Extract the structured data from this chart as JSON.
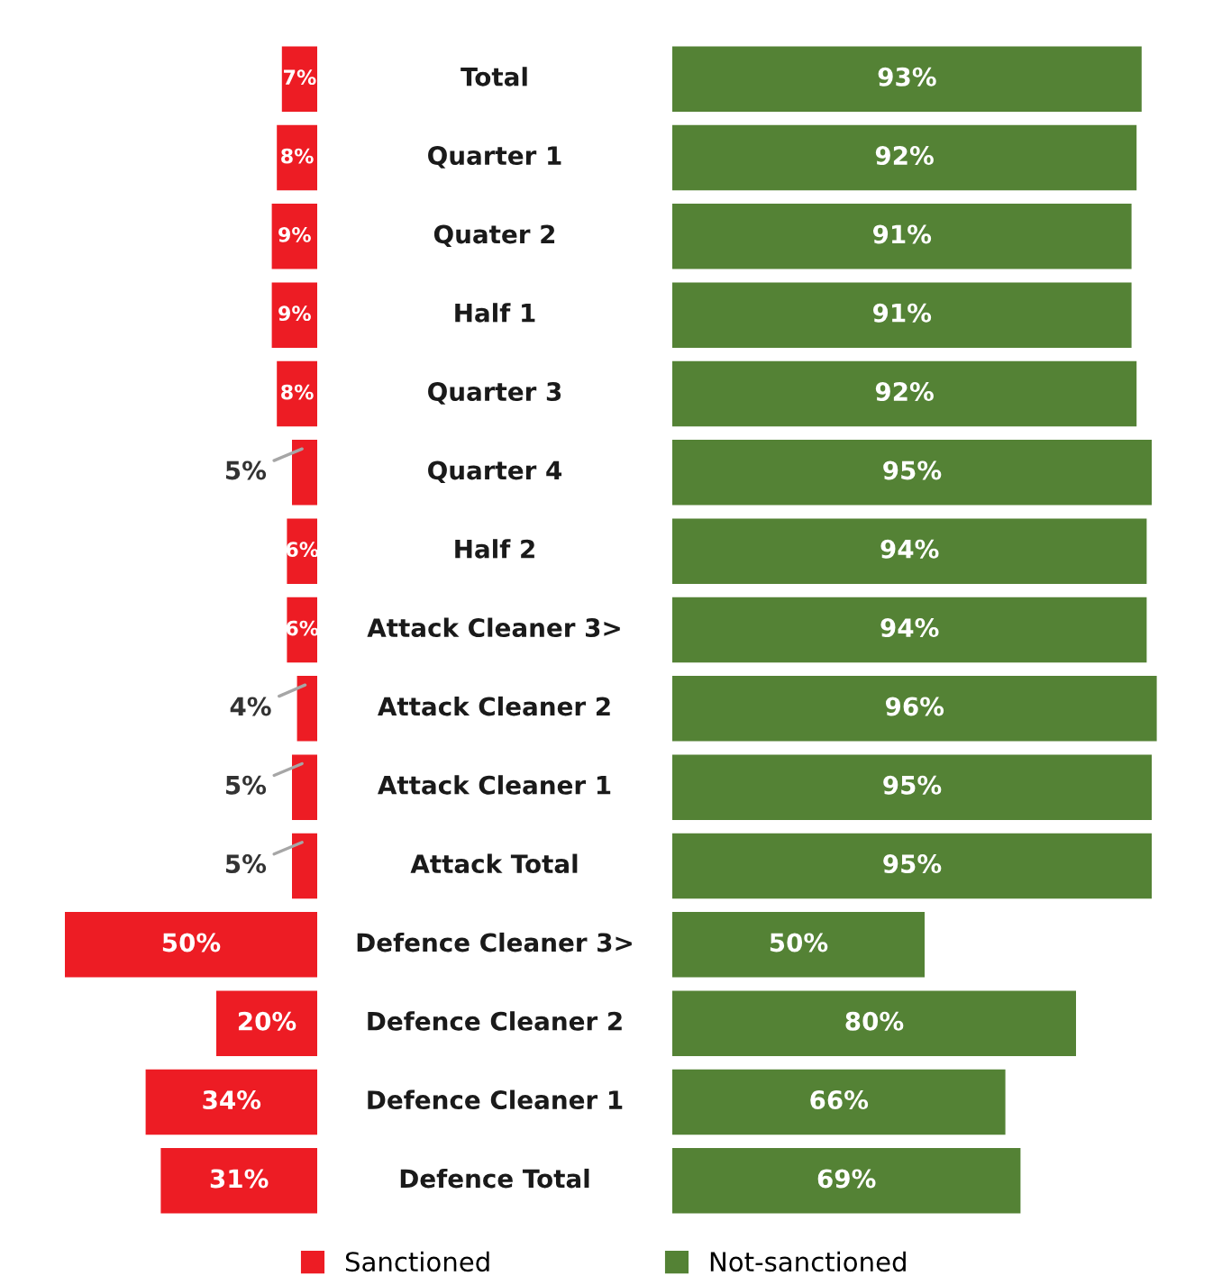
{
  "chart_data": [
    {
      "type": "bar",
      "orientation": "horizontal",
      "legend": "bottom",
      "categories": [
        "Total",
        "Quarter 1",
        "Quater 2",
        "Half 1",
        "Quarter 3",
        "Quarter 4",
        "Half 2",
        "Attack Cleaner 3>",
        "Attack Cleaner 2",
        "Attack Cleaner 1",
        "Attack Total",
        "Defence Cleaner 3>",
        "Defence Cleaner 2",
        "Defence Cleaner 1",
        "Defence Total"
      ],
      "series": [
        {
          "name": "Sanctioned",
          "color": "#ed1c24",
          "values": [
            7,
            8,
            9,
            9,
            8,
            5,
            6,
            6,
            4,
            5,
            5,
            50,
            20,
            34,
            31
          ],
          "value_labels": [
            "7%",
            "8%",
            "9%",
            "9%",
            "8%",
            "5%",
            "6%",
            "6%",
            "4%",
            "5%",
            "5%",
            "50%",
            "20%",
            "34%",
            "31%"
          ]
        }
      ]
    },
    {
      "type": "bar",
      "orientation": "horizontal",
      "legend": "bottom",
      "categories": [
        null,
        null,
        null,
        null,
        null,
        null,
        null,
        null,
        null,
        null,
        null,
        null,
        null,
        null,
        null
      ],
      "series": [
        {
          "name": "Not-sanctioned",
          "color": "#548235",
          "values": [
            93,
            92,
            91,
            91,
            92,
            95,
            94,
            94,
            96,
            95,
            95,
            50,
            80,
            66,
            69
          ],
          "value_labels": [
            "93%",
            "92%",
            "91%",
            "91%",
            "92%",
            "95%",
            "94%",
            "94%",
            "96%",
            "95%",
            "95%",
            "50%",
            "80%",
            "66%",
            "69%"
          ]
        }
      ]
    }
  ]
}
